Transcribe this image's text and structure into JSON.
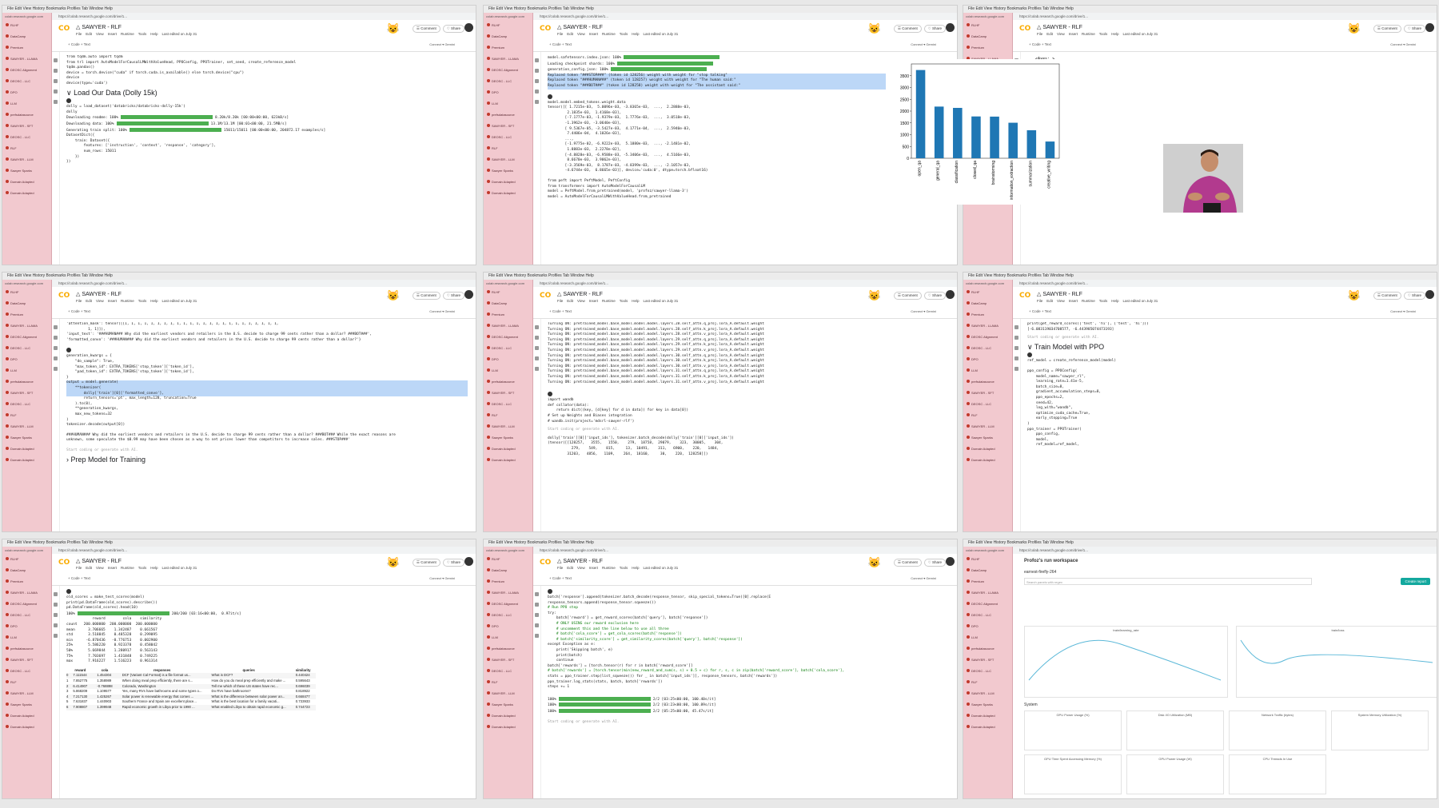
{
  "screen": {
    "notebook_title": "SAWYER - RLF",
    "menu_items": [
      "File",
      "Edit",
      "View",
      "Insert",
      "Runtime",
      "Tools",
      "Help"
    ],
    "last_edited": "Last edited on July 31",
    "code_label": "+ Code  + Text",
    "comment_label": "Comment",
    "share_label": "Share",
    "connect_label": "Connect",
    "gemini_label": "Gemini",
    "url": "https://colab.research.google.com/drive/1..."
  },
  "sidebar": {
    "url": "colab.research.google.com",
    "items": [
      "RLHF",
      "DataCamp",
      "Premium",
      "SAWYER - LLAMA",
      "DEOSC Alignment",
      "DEOSC - LLC",
      "DPO",
      "LLM",
      "prefsdatasource",
      "SAWYER - SFT",
      "DEOSC - LLC",
      "RLF",
      "SAWYER - LLM",
      "Sawyer Sparks",
      "Domain Adapted",
      "Domain Adapted"
    ]
  },
  "tiles": {
    "t1": {
      "lines": [
        "from tqdm.auto import tqdm",
        "from trl import AutoModelForCausalLMWithValueHead, PPOConfig, PPOTrainer, set_seed, create_reference_model",
        "tqdm.pandas()",
        "",
        "device = torch.device(\"cuda\" if torch.cuda.is_available() else torch.device(\"cpu\")",
        "device",
        "",
        "device(type='cuda')"
      ],
      "heading": "Load Our Data (Dolly 15k)",
      "cell2": [
        "dolly = load_dataset('databricks/databricks-dolly-15k')",
        "dolly"
      ],
      "progress": [
        "Downloading readme: 100%",
        "Downloading data: 100%",
        "Generating train split: 100%"
      ],
      "prog_vals": [
        "8.20k/8.20k [00:00<00:00, 623kB/s]",
        "13.1M/13.1M [00:01<00:00, 21.5MB/s]",
        "15011/15011 [00:00<00:00, 204872.17 examples/s]"
      ],
      "cell2_out": [
        "DatasetDict({",
        "    train: Dataset({",
        "        features: ['instruction', 'context', 'response', 'category'],",
        "        num_rows: 15011",
        "    })",
        "})"
      ]
    },
    "t2": {
      "lines": [
        "model.safetensors.index.json: 100%",
        "Loading checkpoint shards: 100%",
        "generation_config.json: 100%",
        "Replaced token \"###STOP###\" (token id 128256) weight with weight for \"stop talking\"",
        "Replaced token \"###HUMAN###\" (token id 128257) weight with weight for \"The human said:\"",
        "Replaced token \"###BOT###\" (token id 128258) weight with weight for \"The assistant said:\""
      ],
      "cell2": [
        "model.model.embed_tokens.weight.data"
      ],
      "tensor": [
        "tensor([[ 1.7215e-03,  5.0096e-03, -3.8365e-03,  ...,  2.2888e-03,",
        "         2.1835e-03,  1.4168e-03],",
        "        [-7.1777e-03, -1.9379e-03,  1.7776e-03,  ...,  3.0518e-03,",
        "        -1.3962e-03, -3.0640e-03],",
        "        [ 9.5367e-05, -3.5427e-03,  4.1771e-04,  ...,  2.5940e-03,",
        "         7.4406e-04,  4.1026e-03],",
        "        ...,",
        "        [-1.9775e-02, -6.9222e-03,  5.1880e-03,  ..., -2.1481e-02,",
        "         1.8883e-03,  2.2278e-02],",
        "        [-4.8828e-03, -6.9588e-03, -5.3406e-03,  ...,  4.5166e-03,",
        "         8.6670e-03,  3.9062e-03],",
        "        [-3.3569e-03,  8.1787e-03, -4.8399e-03,  ..., -2.1057e-03,",
        "        -4.6744e-03,  6.8665e-03]], device='cuda:0', dtype=torch.bfloat16)"
      ],
      "cell3": [
        "from peft import PeftModel, PeftConfig",
        "from transformers import AutoModelForCausalLM",
        "",
        "model = PeftModel.from_pretrained(model, 'profoz/sawyer-llama-3')",
        "",
        "model = AutoModelForCausalLMWithValueHead.from_pretrained"
      ]
    },
    "t3": {
      "chart_label": "<Axes: >"
    },
    "t4": {
      "lines": [
        "'attention_mask': tensor([[1, 1, 1, 1, 1, 1, 1, 1, 1, 1, 1, 1, 1, 1, 1, 1, 1, 1, 1, 1, 1, 1, 1, 1,",
        "          1, 1]]),",
        "'input_text': '###HUMAN### Why did the earliest vendors and retailers in the U.S. decide to charge 99 cents rather than a dollar? ###BOT###',",
        "'formatted_convo': '###HUMAN### Why did the earliest vendors and retailers in the U.S. decide to charge 99 cents rather than a dollar?'}"
      ],
      "cell2": [
        "generation_kwargs = {",
        "    \"do_sample\": True,",
        "    \"max_token_id\": EXTRA_TOKENS['stop_token']['token_id'],",
        "    \"pad_token_id\": EXTRA_TOKENS['stop_token']['token_id'],",
        "}",
        "",
        "output = model.generate(",
        "    **tokenizer(",
        "        dolly['train'][0]['formatted_convo'],",
        "        return_tensors='pt', max_length=128, truncation=True",
        "    ).to(0),",
        "    **generation_kwargs,",
        "    max_new_tokens=32",
        ")",
        "",
        "tokenizer.decode(output[0])"
      ],
      "out": "###HUMAN### Why did the earliest vendors and retailers in the U.S. decide to charge 99 cents rather than a dollar? ###BOT### While the exact reasons are unknown, some speculate the $0.99 may have been chosen as a way to set prices lower than competitors to increase sales. ###STOP###'",
      "placeholder": "Start coding or generate with AI.",
      "heading": "Prep Model for Training"
    },
    "t5": {
      "lines": [
        "Turning ON: pretrained_model.base_model.model.model.layers.28.self_attn.q_proj.lora_A.default.weight",
        "Turning ON: pretrained_model.base_model.model.model.layers.28.self_attn.k_proj.lora_A.default.weight",
        "Turning ON: pretrained_model.base_model.model.model.layers.28.self_attn.v_proj.lora_A.default.weight",
        "Turning ON: pretrained_model.base_model.model.model.layers.29.self_attn.q_proj.lora_A.default.weight",
        "Turning ON: pretrained_model.base_model.model.model.layers.29.self_attn.k_proj.lora_A.default.weight",
        "Turning ON: pretrained_model.base_model.model.model.layers.29.self_attn.v_proj.lora_A.default.weight",
        "Turning ON: pretrained_model.base_model.model.model.layers.30.self_attn.q_proj.lora_A.default.weight",
        "Turning ON: pretrained_model.base_model.model.model.layers.30.self_attn.k_proj.lora_A.default.weight",
        "Turning ON: pretrained_model.base_model.model.model.layers.30.self_attn.v_proj.lora_A.default.weight",
        "Turning ON: pretrained_model.base_model.model.model.layers.31.self_attn.q_proj.lora_A.default.weight",
        "Turning ON: pretrained_model.base_model.model.model.layers.31.self_attn.k_proj.lora_A.default.weight",
        "Turning ON: pretrained_model.base_model.model.model.layers.31.self_attn.v_proj.lora_A.default.weight"
      ],
      "cell2": [
        "import wandb",
        "",
        "def collator(data):",
        "    return dict((key, [d[key] for d in data]) for key in data[0])",
        "",
        "# Set up Weights and Biases integration",
        "# wandb.init(project='mdsrl-sawyer-rlf')"
      ],
      "placeholder": "Start coding or generate with AI.",
      "cell3": [
        "dolly['train'][0]['input_ids'], tokenizer.batch_decode(dolly['train'][0]['input_ids'])",
        "",
        "(tensor([[128257,   3555,   1550,    279,  18758,  29079,    323,  30005,    304,",
        "           279,    549,    815,     13,  10491,    311,   6900,    220,   1484,",
        "         31203,   4856,   1109,    264,  18160,     30,    220,  128258]])"
      ]
    },
    "t6": {
      "lines": [
        "print(get_reward_scores(['test', 'hi'], ['test', 'hi']))",
        "",
        "[-6.083119034708577, -6.443985074473193]"
      ],
      "placeholder": "Start coding or generate with AI.",
      "heading": "Train Model with PPO",
      "cell2": [
        "ref_model = create_reference_model(model)"
      ],
      "cell3": [
        "ppo_config = PPOConfig(",
        "    model_name=\"sawyer_rl\",",
        "    learning_rate=1.41e-5,",
        "    batch_size=8,",
        "    gradient_accumulation_steps=8,",
        "    ppo_epochs=2,",
        "    seed=42,",
        "    log_with=\"wandb\",",
        "    optimize_cuda_cache=True,",
        "    early_stopping=True",
        ")",
        "",
        "ppo_trainer = PPOTrainer(",
        "    ppo_config,",
        "    model,",
        "    ref_model=ref_model,"
      ]
    },
    "t7": {
      "lines": [
        "old_scores = make_test_scores(model)",
        "print(pd.DataFrame(old_scores).describe())",
        "",
        "pd.DataFrame(old_scores).head(10)"
      ],
      "prog_vals": [
        "200/200 [03:16<00:00,  0.97it/s]"
      ],
      "stats": [
        "            reward        cola    similarity",
        "count   200.000000  200.000000  200.000000",
        "mean      3.706665    1.342487    0.661567",
        "std       3.518845    0.485328    0.299095",
        "min      -6.870436   -0.776753    0.002900",
        "25%       5.586220    0.923378    0.458042",
        "50%       5.669844    1.280917    0.563143",
        "75%       7.703697    1.431848    0.749225",
        "max       7.916227    1.516223    0.961314"
      ],
      "tbl_head": [
        "reward",
        "cola",
        "responses",
        "queries",
        "similarity"
      ],
      "rows": [
        [
          "7.111544",
          "1.454304",
          "DCF (Variant Cal Format) is a file format us...",
          "What is DCF?",
          "0.440424"
        ],
        [
          "7.852775",
          "1.358989",
          "When doing meal prep efficiently, there are s...",
          "How do you do meal prep efficiently and make ...",
          "0.595643"
        ],
        [
          "6.414907",
          "-0.768898",
          "Colorado, Washington",
          "Tell me which of these US states have rec...",
          "0.696039"
        ],
        [
          "5.868209",
          "1.109577",
          "Yes, many RVs have bathrooms and some types o...",
          "Do RVs have bathrooms?",
          "0.818922"
        ],
        [
          "7.217130",
          "1.425267",
          "Solar power is renewable energy that comes ...",
          "What is the difference between solar power an...",
          "0.668477"
        ],
        [
          "7.631837",
          "1.440903",
          "Southern France and Spain are excellent place...",
          "What is the best location for a family vacati...",
          "0.733933"
        ],
        [
          "7.908807",
          "1.399948",
          "Rapid economic growth in Libya prior to 1990 ...",
          "What enabled Libya to obtain rapid economic g...",
          "0.744723"
        ]
      ]
    },
    "t8": {
      "lines": [
        "batch['response'].append(tokenizer.batch_decode(response_tensor, skip_special_tokens=True)[0].replace(E",
        "response_tensors.append(response_tensor.squeeze())",
        "# Run PPO step",
        "try:",
        "    batch['reward'] = get_reward_scores(batch['query'], batch['response'])",
        "    # ONLY USING our reward exclusion here",
        "",
        "    # uncomment this and the line below to use all three",
        "    # batch['cola_score'] = get_cola_scores(batch['response'])",
        "    # batch['similarity_score'] = get_similarity_scores(batch['query'], batch['response'])",
        "except Exception as e:",
        "    print('Skipping batch', e)",
        "    print(batch)",
        "    continue",
        "",
        "batch['rewards'] = [torch.tensor(r) for r in batch['reward_score']]",
        "# batch['rewards'] = [torch.tensor(min(new_reward_and_sum(s, s) + 0.5 + c) for r, s, c in zip(batch['reward_score'], batch['cola_score'],",
        "",
        "stats = ppo_trainer.step(list_squeeze()) for _ in batch['input_ids']], response_tensors, batch['rewards'])",
        "ppo_trainer.log_stats(stats, batch, batch['rewards'])",
        "",
        "steps += 1"
      ],
      "prog_vals": [
        "2/2 [03:25<00:00, 100.40s/it]",
        "2/2 [03:23<00:00, 100.89s/it]",
        "2/2 [05:25<00:00, 45.47s/it]"
      ],
      "prog_labels": [
        "100%",
        "100%",
        "100%"
      ],
      "placeholder": "Start coding or generate with AI."
    },
    "t9": {
      "workspace": "Profoz's run workspace",
      "run_name": "earnest-firefly-264",
      "search": "Search panels with regex",
      "create_report": "Create report",
      "charts": [
        "train/learning_rate",
        "train/loss"
      ],
      "section": "System",
      "sys_charts": [
        "GPU Power Usage (%)",
        "Disk I/O Utilization (MB)",
        "Network Traffic (bytes)",
        "System Memory Utilization (%)",
        "GPU Time Spent Accessing Memory (%)",
        "GPU Power Usage (W)",
        "CPU Threads In Use"
      ]
    }
  },
  "chart_data": {
    "type": "bar",
    "title": "<Axes: >",
    "categories": [
      "open_qa",
      "general_qa",
      "classification",
      "closed_qa",
      "brainstorming",
      "information_extraction",
      "summarization",
      "creative_writing"
    ],
    "values": [
      3742,
      2191,
      2136,
      1773,
      1766,
      1506,
      1188,
      709
    ],
    "ylim": [
      0,
      4000
    ],
    "yticks": [
      0,
      500,
      1000,
      1500,
      2000,
      2500,
      3000,
      3500
    ],
    "color": "#1f77b4"
  }
}
